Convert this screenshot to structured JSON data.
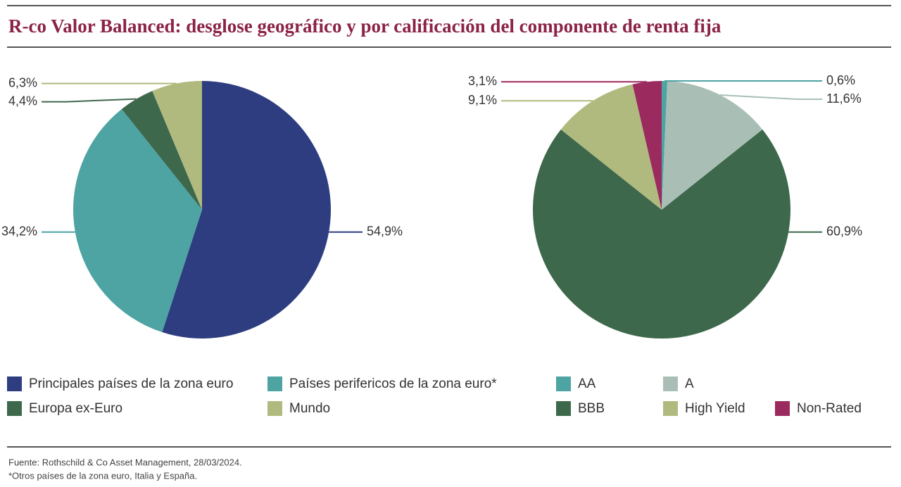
{
  "title": "R-co Valor Balanced: desglose geográfico y por calificación del componente de renta fija",
  "chart_data": [
    {
      "type": "pie",
      "categories": [
        "Principales países de la zona euro",
        "Países perifericos de la zona euro*",
        "Europa ex-Euro",
        "Mundo"
      ],
      "values": [
        54.9,
        34.2,
        4.4,
        6.3
      ],
      "value_labels": [
        "54,9%",
        "34,2%",
        "4,4%",
        "6,3%"
      ],
      "colors": [
        "#2e3d80",
        "#4ea3a3",
        "#3e684b",
        "#b0ba7e"
      ]
    },
    {
      "type": "pie",
      "categories": [
        "AA",
        "A",
        "BBB",
        "High Yield",
        "Non-Rated"
      ],
      "values": [
        0.6,
        11.6,
        60.9,
        9.1,
        3.1
      ],
      "value_labels": [
        "0,6%",
        "11,6%",
        "60,9%",
        "9,1%",
        "3,1%"
      ],
      "colors": [
        "#4ea3a3",
        "#a9bfb6",
        "#3e684b",
        "#b0ba7e",
        "#9b2a5e"
      ]
    }
  ],
  "notes": [
    "Fuente: Rothschild & Co Asset Management, 28/03/2024.",
    "*Otros países de la zona euro, Italia y España."
  ]
}
